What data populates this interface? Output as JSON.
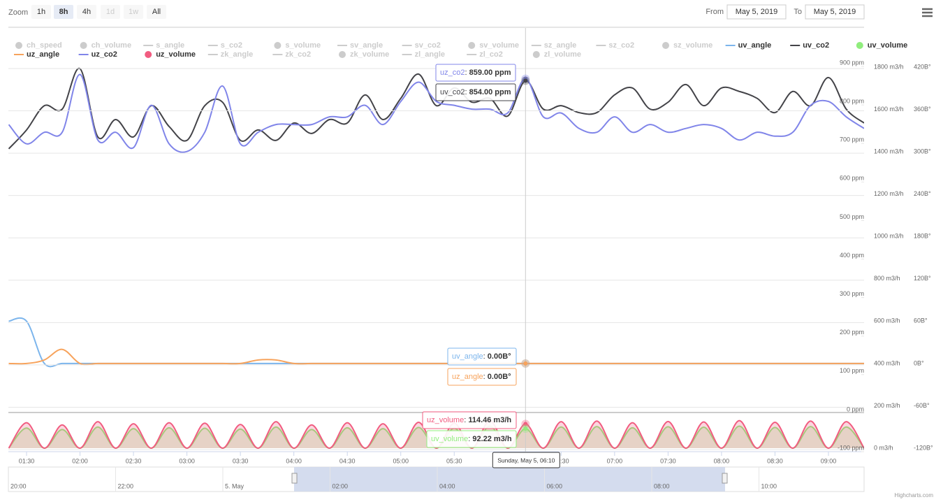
{
  "chart_data": {
    "type": "line",
    "zoom": {
      "label": "Zoom",
      "buttons": [
        "1h",
        "8h",
        "4h",
        "1d",
        "1w",
        "All"
      ],
      "selected": "8h",
      "disabled": [
        "1d",
        "1w"
      ]
    },
    "range": {
      "from_label": "From",
      "from": "May 5, 2019",
      "to_label": "To",
      "to": "May 5, 2019"
    },
    "x": [
      "01:20",
      "01:30",
      "01:40",
      "01:50",
      "02:00",
      "02:10",
      "02:20",
      "02:30",
      "02:40",
      "02:50",
      "03:00",
      "03:10",
      "03:20",
      "03:30",
      "03:40",
      "03:50",
      "04:00",
      "04:10",
      "04:20",
      "04:30",
      "04:40",
      "04:50",
      "05:00",
      "05:10",
      "05:20",
      "05:30",
      "05:40",
      "05:50",
      "06:00",
      "06:10",
      "06:20",
      "06:30",
      "06:40",
      "06:50",
      "07:00",
      "07:10",
      "07:20",
      "07:30",
      "07:40",
      "07:50",
      "08:00",
      "08:10",
      "08:20",
      "08:30",
      "08:40",
      "08:50",
      "09:00",
      "09:10",
      "09:20"
    ],
    "xlim": [
      "01:20",
      "09:20"
    ],
    "xticks": [
      "01:30",
      "02:00",
      "02:30",
      "03:00",
      "03:30",
      "04:00",
      "04:30",
      "05:00",
      "05:30",
      "06:00",
      "06:30",
      "07:00",
      "07:30",
      "08:00",
      "08:30",
      "09:00"
    ],
    "ylim": [
      -100,
      900
    ],
    "yticks": [
      {
        "value": -100,
        "label": "-100 ppm"
      },
      {
        "value": 0,
        "label": "0 ppm"
      },
      {
        "value": 100,
        "label": "100 ppm"
      },
      {
        "value": 200,
        "label": "200 ppm"
      },
      {
        "value": 300,
        "label": "300 ppm"
      },
      {
        "value": 400,
        "label": "400 ppm"
      },
      {
        "value": 500,
        "label": "500 ppm"
      },
      {
        "value": 600,
        "label": "600 ppm"
      },
      {
        "value": 700,
        "label": "700 ppm"
      },
      {
        "value": 800,
        "label": "800 ppm"
      },
      {
        "value": 900,
        "label": "900 ppm"
      }
    ],
    "y2lim": [
      0,
      1800
    ],
    "y2ticks": [
      {
        "value": 0,
        "label": "0 m3/h"
      },
      {
        "value": 200,
        "label": "200 m3/h"
      },
      {
        "value": 400,
        "label": "400 m3/h"
      },
      {
        "value": 600,
        "label": "600 m3/h"
      },
      {
        "value": 800,
        "label": "800 m3/h"
      },
      {
        "value": 1000,
        "label": "1000 m3/h"
      },
      {
        "value": 1200,
        "label": "1200 m3/h"
      },
      {
        "value": 1400,
        "label": "1400 m3/h"
      },
      {
        "value": 1600,
        "label": "1600 m3/h"
      },
      {
        "value": 1800,
        "label": "1800 m3/h"
      }
    ],
    "y3lim": [
      -120,
      420
    ],
    "y3ticks": [
      {
        "value": -120,
        "label": "-120B°"
      },
      {
        "value": -60,
        "label": "-60B°"
      },
      {
        "value": 0,
        "label": "0B°"
      },
      {
        "value": 60,
        "label": "60B°"
      },
      {
        "value": 120,
        "label": "120B°"
      },
      {
        "value": 180,
        "label": "180B°"
      },
      {
        "value": 240,
        "label": "240B°"
      },
      {
        "value": 300,
        "label": "300B°"
      },
      {
        "value": 360,
        "label": "360B°"
      },
      {
        "value": 420,
        "label": "420B°"
      }
    ],
    "grid": true,
    "series": [
      {
        "name": "ch_speed",
        "symbol": "circle",
        "visible": false
      },
      {
        "name": "ch_volume",
        "symbol": "circle",
        "visible": false
      },
      {
        "name": "s_angle",
        "symbol": "line",
        "visible": false
      },
      {
        "name": "s_co2",
        "symbol": "line",
        "visible": false
      },
      {
        "name": "s_volume",
        "symbol": "circle",
        "visible": false
      },
      {
        "name": "sv_angle",
        "symbol": "line",
        "visible": false
      },
      {
        "name": "sv_co2",
        "symbol": "line",
        "visible": false
      },
      {
        "name": "sv_volume",
        "symbol": "circle",
        "visible": false
      },
      {
        "name": "sz_angle",
        "symbol": "line",
        "visible": false
      },
      {
        "name": "sz_co2",
        "symbol": "line",
        "visible": false
      },
      {
        "name": "sz_volume",
        "symbol": "circle",
        "visible": false
      },
      {
        "name": "uv_angle",
        "symbol": "line",
        "visible": true,
        "color": "#7cb5ec",
        "axis": "y3",
        "values": [
          60,
          60,
          0,
          0,
          0,
          0,
          0,
          0,
          0,
          0,
          0,
          0,
          0,
          0,
          0,
          0,
          0,
          0,
          0,
          0,
          0,
          0,
          0,
          0,
          0,
          0,
          0,
          0,
          0,
          0,
          0,
          0,
          0,
          0,
          0,
          0,
          0,
          0,
          0,
          0,
          0,
          0,
          0,
          0,
          0,
          0,
          0,
          0,
          0
        ]
      },
      {
        "name": "uv_co2",
        "symbol": "line",
        "visible": true,
        "color": "#434348",
        "axis": "y",
        "values": [
          677,
          726,
          789,
          780,
          885,
          708,
          753,
          708,
          789,
          735,
          699,
          789,
          798,
          699,
          726,
          699,
          744,
          717,
          753,
          744,
          817,
          753,
          808,
          871,
          789,
          835,
          798,
          808,
          762,
          854,
          780,
          789,
          771,
          771,
          817,
          835,
          780,
          798,
          844,
          789,
          835,
          826,
          808,
          771,
          826,
          789,
          862,
          780,
          744
        ]
      },
      {
        "name": "uv_volume",
        "symbol": "circle",
        "visible": true,
        "color": "#90ed7d",
        "axis": "y2",
        "values": [
          0,
          95,
          0,
          88,
          0,
          100,
          0,
          92,
          0,
          96,
          0,
          94,
          0,
          90,
          0,
          100,
          0,
          88,
          0,
          96,
          0,
          92,
          0,
          98,
          0,
          94,
          0,
          104,
          0,
          92.22,
          0,
          100,
          0,
          102,
          0,
          96,
          0,
          101,
          0,
          99,
          0,
          104,
          0,
          98,
          0,
          102,
          0,
          100,
          0
        ]
      },
      {
        "name": "uz_angle",
        "symbol": "line",
        "visible": true,
        "color": "#f7a35c",
        "axis": "y3",
        "values": [
          0,
          0,
          5,
          20,
          0,
          0,
          0,
          0,
          0,
          0,
          0,
          0,
          0,
          0,
          5,
          5,
          0,
          0,
          0,
          0,
          0,
          0,
          0,
          0,
          0,
          0,
          0,
          0,
          0,
          0,
          0,
          0,
          0,
          0,
          0,
          0,
          0,
          0,
          0,
          0,
          0,
          0,
          0,
          0,
          0,
          0,
          0,
          0,
          0
        ]
      },
      {
        "name": "uz_co2",
        "symbol": "line",
        "visible": true,
        "color": "#8085e9",
        "axis": "y",
        "values": [
          740,
          690,
          720,
          720,
          870,
          700,
          720,
          680,
          790,
          690,
          670,
          720,
          840,
          690,
          720,
          740,
          740,
          740,
          760,
          760,
          790,
          740,
          800,
          850,
          800,
          790,
          780,
          780,
          770,
          859,
          760,
          770,
          730,
          720,
          760,
          720,
          740,
          720,
          730,
          740,
          730,
          700,
          720,
          710,
          720,
          790,
          800,
          760,
          730
        ]
      },
      {
        "name": "uz_volume",
        "symbol": "circle",
        "visible": true,
        "color": "#f15c80",
        "axis": "y2",
        "values": [
          0,
          120,
          0,
          110,
          0,
          125,
          0,
          115,
          0,
          120,
          0,
          118,
          0,
          112,
          0,
          125,
          0,
          110,
          0,
          120,
          0,
          115,
          0,
          122,
          0,
          118,
          0,
          130,
          0,
          114.46,
          0,
          125,
          0,
          128,
          0,
          120,
          0,
          126,
          0,
          124,
          0,
          130,
          0,
          122,
          0,
          128,
          0,
          125,
          0
        ]
      },
      {
        "name": "zk_angle",
        "symbol": "line",
        "visible": false
      },
      {
        "name": "zk_co2",
        "symbol": "line",
        "visible": false
      },
      {
        "name": "zk_volume",
        "symbol": "circle",
        "visible": false
      },
      {
        "name": "zl_angle",
        "symbol": "line",
        "visible": false
      },
      {
        "name": "zl_co2",
        "symbol": "line",
        "visible": false
      },
      {
        "name": "zl_volume",
        "symbol": "circle",
        "visible": false
      }
    ],
    "tooltip": {
      "header": "Sunday, May 5, 06:10",
      "x": "06:10",
      "separator": ": ",
      "items": [
        {
          "series": "uz_co2",
          "value": 859,
          "label": "859.00 ppm"
        },
        {
          "series": "uv_co2",
          "value": 854,
          "label": "854.00 ppm"
        },
        {
          "series": "uv_angle",
          "value": 0,
          "label": "0.00B°"
        },
        {
          "series": "uz_angle",
          "value": 0,
          "label": "0.00B°"
        },
        {
          "series": "uz_volume",
          "value": 114.46,
          "label": "114.46 m3/h"
        },
        {
          "series": "uv_volume",
          "value": 92.22,
          "label": "92.22 m3/h"
        }
      ]
    },
    "navigator": {
      "labels": [
        "20:00",
        "22:00",
        "5. May",
        "02:00",
        "04:00",
        "06:00",
        "08:00",
        "10:00"
      ]
    },
    "credits": "Highcharts.com"
  }
}
